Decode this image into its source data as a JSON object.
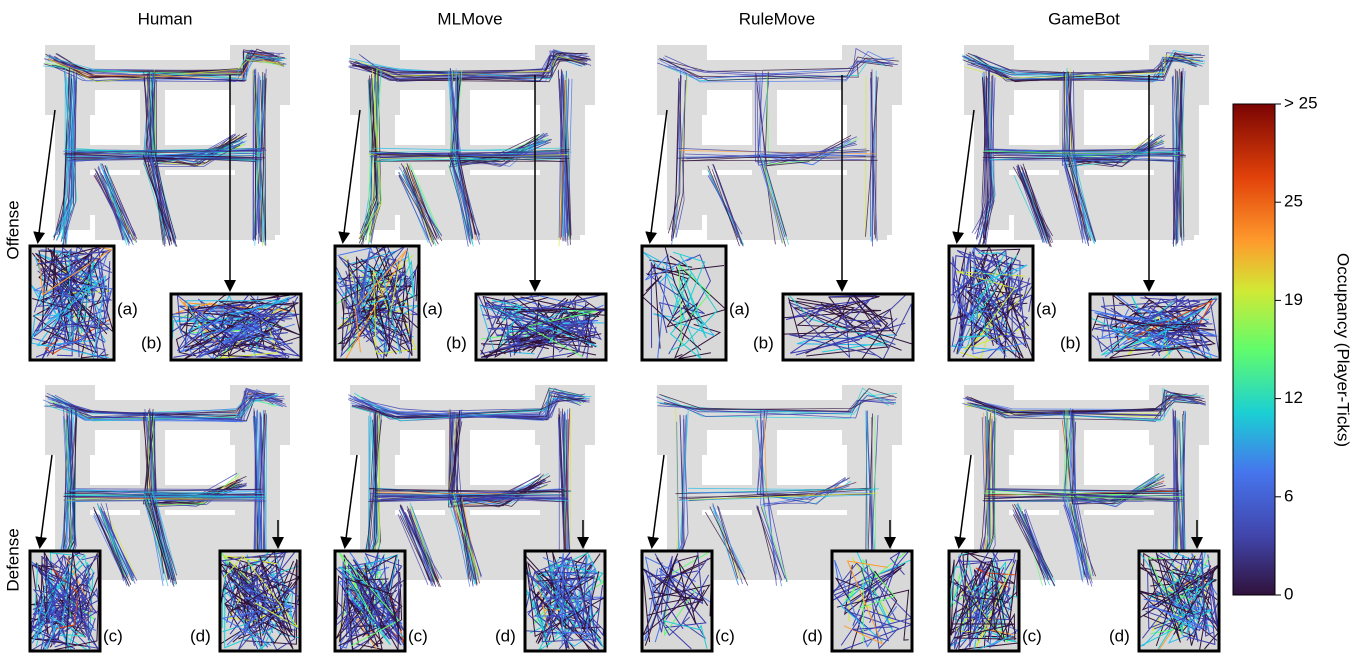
{
  "columns": [
    {
      "title": "Human"
    },
    {
      "title": "MLMove"
    },
    {
      "title": "RuleMove"
    },
    {
      "title": "GameBot"
    }
  ],
  "rows": [
    "Offense",
    "Defense"
  ],
  "inset_labels": [
    "(a)",
    "(b)",
    "(c)",
    "(d)"
  ],
  "colorbar": {
    "label": "Occupancy (Player-Ticks)",
    "ticks": [
      "0",
      "6",
      "12",
      "19",
      "25",
      "> 25"
    ]
  }
}
